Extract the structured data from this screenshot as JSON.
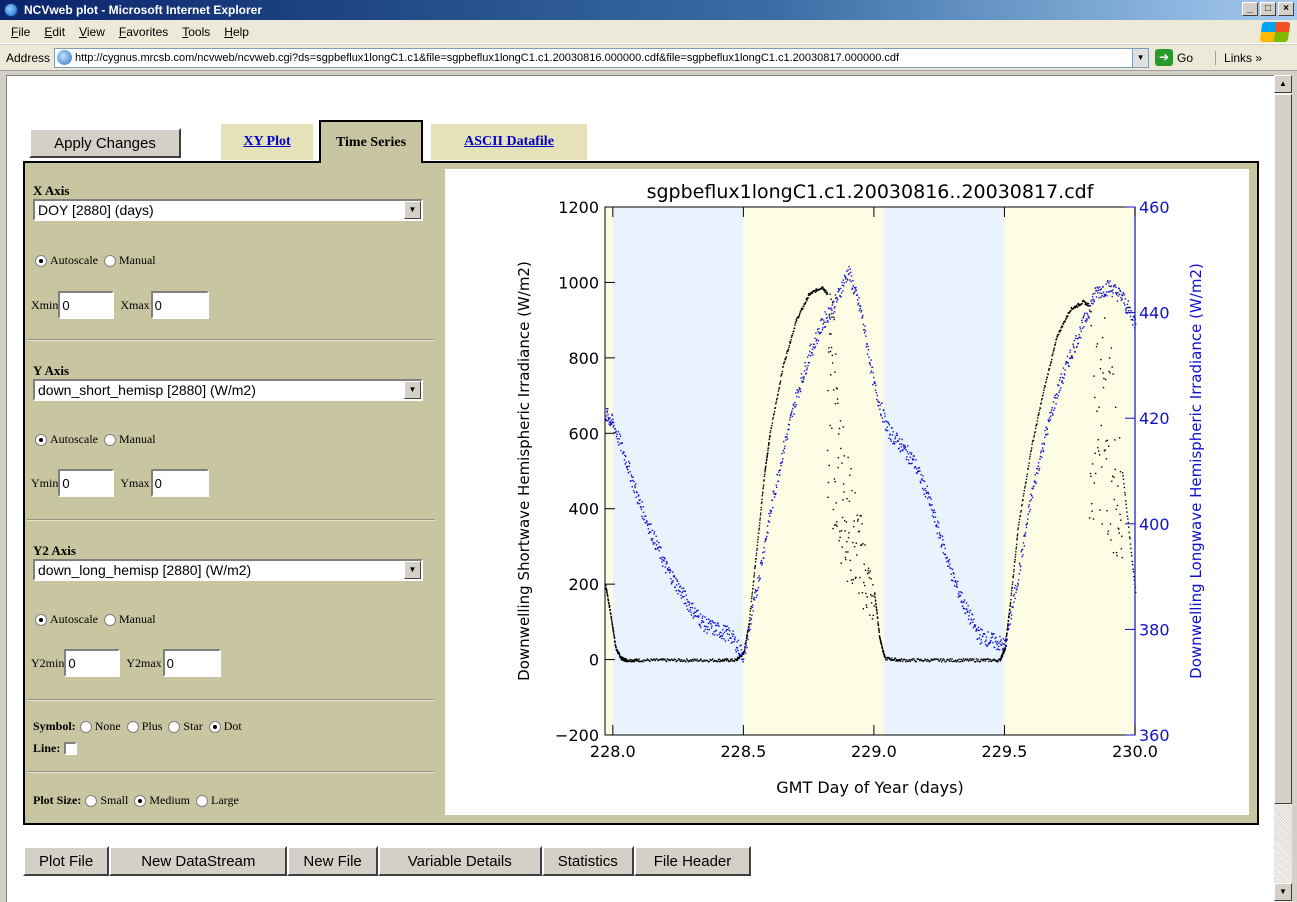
{
  "window": {
    "title": "NCVweb plot - Microsoft Internet Explorer"
  },
  "menu": [
    "File",
    "Edit",
    "View",
    "Favorites",
    "Tools",
    "Help"
  ],
  "address": {
    "label": "Address",
    "url": "http://cygnus.mrcsb.com/ncvweb/ncvweb.cgi?ds=sgpbeflux1longC1.c1&file=sgpbeflux1longC1.c1.20030816.000000.cdf&file=sgpbeflux1longC1.c1.20030817.000000.cdf",
    "go": "Go",
    "links": "Links"
  },
  "tabs": {
    "apply": "Apply Changes",
    "xy": "XY Plot",
    "time_series": "Time Series",
    "ascii": "ASCII Datafile"
  },
  "x_axis": {
    "title": "X Axis",
    "select": "DOY [2880] (days)",
    "autoscale": "Autoscale",
    "manual": "Manual",
    "min_label": "Xmin",
    "min_value": "0",
    "max_label": "Xmax",
    "max_value": "0"
  },
  "y_axis": {
    "title": "Y Axis",
    "select": "down_short_hemisp [2880] (W/m2)",
    "autoscale": "Autoscale",
    "manual": "Manual",
    "min_label": "Ymin",
    "min_value": "0",
    "max_label": "Ymax",
    "max_value": "0"
  },
  "y2_axis": {
    "title": "Y2 Axis",
    "select": "down_long_hemisp [2880] (W/m2)",
    "autoscale": "Autoscale",
    "manual": "Manual",
    "min_label": "Y2min",
    "min_value": "0",
    "max_label": "Y2max",
    "max_value": "0"
  },
  "symbol": {
    "label": "Symbol:",
    "options": [
      "None",
      "Plus",
      "Star",
      "Dot"
    ],
    "selected": "Dot",
    "line_label": "Line:",
    "line_checked": false
  },
  "plot_size": {
    "label": "Plot Size:",
    "options": [
      "Small",
      "Medium",
      "Large"
    ],
    "selected": "Medium"
  },
  "bottom_buttons": [
    "Plot File",
    "New DataStream",
    "New File",
    "Variable Details",
    "Statistics",
    "File Header"
  ],
  "colors": {
    "night_band": "#e8f3fd",
    "day_band": "#fdfde6",
    "y1": "#000000",
    "y2": "#1010d0"
  },
  "chart_data": {
    "type": "scatter",
    "title": "sgpbeflux1longC1.c1.20030816..20030817.cdf",
    "xlabel": "GMT Day of Year (days)",
    "ylabel": "Downwelling Shortwave Hemispheric Irradiance (W/m2)",
    "y2label": "Downwelling Longwave Hemispheric Irradiance (W/m2)",
    "xlim": [
      227.97,
      230.0
    ],
    "ylim": [
      -200,
      1200
    ],
    "y2lim": [
      360,
      460
    ],
    "xticks": [
      "228.0",
      "228.5",
      "229.0",
      "229.5",
      "230.0"
    ],
    "yticks": [
      "−200",
      "0",
      "200",
      "400",
      "600",
      "800",
      "1000",
      "1200"
    ],
    "y2ticks": [
      "360",
      "380",
      "400",
      "420",
      "440",
      "460"
    ],
    "night_bands": [
      [
        228.0,
        228.5
      ],
      [
        229.04,
        229.5
      ]
    ],
    "series": [
      {
        "axis": "y1",
        "color": "#000000",
        "x": [
          227.97,
          227.99,
          228.01,
          228.03,
          228.05,
          228.1,
          228.2,
          228.3,
          228.4,
          228.47,
          228.5,
          228.52,
          228.55,
          228.58,
          228.6,
          228.65,
          228.7,
          228.75,
          228.8,
          228.83,
          228.86,
          228.9,
          228.95,
          229.0,
          229.02,
          229.04,
          229.1,
          229.2,
          229.3,
          229.4,
          229.48,
          229.5,
          229.52,
          229.55,
          229.6,
          229.65,
          229.7,
          229.75,
          229.8,
          229.85,
          229.9,
          229.95,
          230.0
        ],
        "y": [
          200,
          120,
          30,
          5,
          0,
          0,
          0,
          0,
          0,
          0,
          20,
          100,
          300,
          500,
          600,
          780,
          900,
          970,
          990,
          960,
          700,
          500,
          350,
          180,
          60,
          5,
          0,
          0,
          0,
          0,
          0,
          30,
          150,
          350,
          560,
          720,
          860,
          930,
          950,
          930,
          800,
          500,
          180
        ]
      },
      {
        "axis": "y2",
        "color": "#1010d0",
        "x": [
          227.97,
          228.0,
          228.05,
          228.1,
          228.15,
          228.2,
          228.25,
          228.3,
          228.35,
          228.4,
          228.45,
          228.5,
          228.55,
          228.6,
          228.65,
          228.7,
          228.75,
          228.8,
          228.85,
          228.9,
          228.95,
          229.0,
          229.05,
          229.1,
          229.15,
          229.2,
          229.25,
          229.3,
          229.35,
          229.4,
          229.45,
          229.5,
          229.55,
          229.6,
          229.65,
          229.7,
          229.75,
          229.8,
          229.85,
          229.9,
          229.95,
          230.0
        ],
        "y": [
          421,
          419,
          412,
          404,
          398,
          392,
          388,
          384,
          381,
          380,
          379,
          375,
          388,
          402,
          414,
          424,
          432,
          438,
          442,
          448,
          440,
          426,
          418,
          415,
          412,
          406,
          398,
          390,
          384,
          379,
          378,
          377,
          390,
          405,
          416,
          425,
          432,
          438,
          444,
          445,
          443,
          438
        ]
      }
    ]
  }
}
